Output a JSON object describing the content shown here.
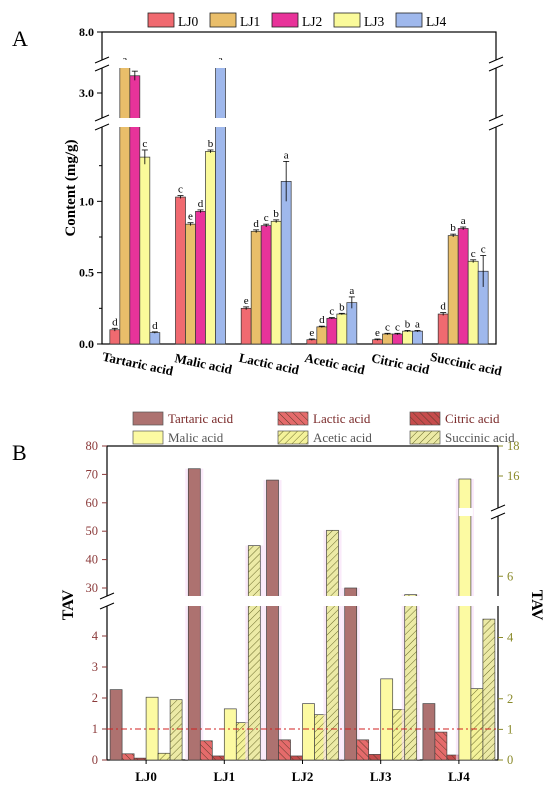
{
  "colors": {
    "LJ0": "#f06a70",
    "LJ1": "#e9be6a",
    "LJ2": "#e8339a",
    "LJ3": "#fafa9a",
    "LJ4": "#9fb8ec",
    "tartaric": "#ad7270",
    "lactic": "#e56b6b",
    "citric": "#c64c4c",
    "malic": "#fcfaa2",
    "acetic": "#f4f29a",
    "succinic": "#eceaa6",
    "left_axis": "#8b3a3a",
    "right_axis": "#8a8a2a",
    "threshold": "#d02020",
    "highlight": "#f7dcf7"
  },
  "chart_data": [
    {
      "panel": "A",
      "type": "bar",
      "ylabel": "Content (mg/g)",
      "categories": [
        "Tartaric acid",
        "Malic acid",
        "Lactic acid",
        "Acetic acid",
        "Citric acid",
        "Succinic acid"
      ],
      "legend": [
        "LJ0",
        "LJ1",
        "LJ2",
        "LJ3",
        "LJ4"
      ],
      "legend_position": "top",
      "axis_breaks": [
        [
          1.5,
          2.6
        ],
        [
          3.4,
          7.8
        ]
      ],
      "yticks": [
        "0.0",
        "0.5",
        "1.0",
        "3.0",
        "8.0"
      ],
      "series": [
        {
          "name": "LJ0",
          "values": [
            0.1,
            1.03,
            0.25,
            0.03,
            0.03,
            0.21
          ],
          "errors": [
            0.01,
            0.01,
            0.01,
            0.005,
            0.005,
            0.01
          ],
          "labels": [
            "d",
            "c",
            "e",
            "e",
            "e",
            "d"
          ]
        },
        {
          "name": "LJ1",
          "values": [
            3.6,
            0.84,
            0.79,
            0.12,
            0.07,
            0.76
          ],
          "errors": [
            0.05,
            0.01,
            0.01,
            0.005,
            0.005,
            0.01
          ],
          "labels": [
            "a",
            "e",
            "d",
            "d",
            "c",
            "b"
          ]
        },
        {
          "name": "LJ2",
          "values": [
            3.3,
            0.93,
            0.83,
            0.18,
            0.07,
            0.81
          ],
          "errors": [
            0.08,
            0.01,
            0.01,
            0.005,
            0.005,
            0.01
          ],
          "labels": [
            "b",
            "d",
            "c",
            "c",
            "c",
            "a"
          ]
        },
        {
          "name": "LJ3",
          "values": [
            1.31,
            1.35,
            0.86,
            0.21,
            0.09,
            0.58
          ],
          "errors": [
            0.05,
            0.01,
            0.01,
            0.005,
            0.005,
            0.01
          ],
          "labels": [
            "c",
            "b",
            "b",
            "b",
            "b",
            "c"
          ]
        },
        {
          "name": "LJ4",
          "values": [
            0.08,
            7.7,
            1.14,
            0.29,
            0.09,
            0.51
          ],
          "errors": [
            0.005,
            0.05,
            0.14,
            0.04,
            0.005,
            0.11
          ],
          "labels": [
            "d",
            "a",
            "a",
            "a",
            "a",
            "c"
          ]
        }
      ]
    },
    {
      "panel": "B",
      "type": "bar",
      "ylabel_left": "TAV",
      "ylabel_right": "TAV",
      "categories": [
        "LJ0",
        "LJ1",
        "LJ2",
        "LJ3",
        "LJ4"
      ],
      "legend": [
        "Tartaric acid",
        "Lactic acid",
        "Citric acid",
        "Malic acid",
        "Acetic acid",
        "Succinic acid"
      ],
      "legend_position": "top",
      "left_axis_break": [
        5,
        25
      ],
      "left_yticks": [
        "0",
        "1",
        "2",
        "3",
        "4",
        "30",
        "40",
        "50",
        "60",
        "70",
        "80"
      ],
      "right_axis_break": [
        9,
        14
      ],
      "right_yticks": [
        "0",
        "1",
        "2",
        "4",
        "6",
        "16",
        "18"
      ],
      "threshold": 1,
      "series": [
        {
          "name": "Tartaric acid",
          "axis": "left",
          "values": [
            2.27,
            72,
            68,
            30,
            1.82
          ]
        },
        {
          "name": "Lactic acid",
          "axis": "left",
          "values": [
            0.2,
            0.62,
            0.65,
            0.65,
            0.9
          ]
        },
        {
          "name": "Citric acid",
          "axis": "left",
          "values": [
            0.06,
            0.13,
            0.13,
            0.18,
            0.16
          ]
        },
        {
          "name": "Malic acid",
          "axis": "right",
          "values": [
            2.05,
            1.67,
            1.84,
            2.65,
            15.8
          ]
        },
        {
          "name": "Acetic acid",
          "axis": "right",
          "values": [
            0.22,
            1.22,
            1.48,
            1.65,
            2.33
          ]
        },
        {
          "name": "Succinic acid",
          "axis": "right",
          "values": [
            1.97,
            7.0,
            7.5,
            5.4,
            4.6
          ]
        }
      ]
    }
  ]
}
